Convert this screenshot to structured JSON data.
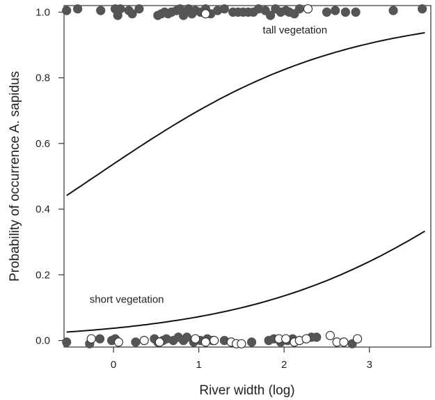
{
  "chart_data": {
    "type": "scatter",
    "xlabel": "River width (log)",
    "ylabel": "Probability of occurrence A. sapidus",
    "xlim": [
      -0.58,
      3.72
    ],
    "ylim": [
      -0.02,
      1.02
    ],
    "x_ticks": [
      0,
      1,
      2,
      3
    ],
    "y_ticks": [
      0.0,
      0.2,
      0.4,
      0.6,
      0.8,
      1.0
    ],
    "x_tick_labels": [
      "0",
      "1",
      "2",
      "3"
    ],
    "y_tick_labels": [
      "0.0",
      "0.2",
      "0.4",
      "0.6",
      "0.8",
      "1.0"
    ],
    "grid": false,
    "curves": [
      {
        "label": "tall vegetation",
        "intercept": 0.15,
        "slope": 0.7,
        "x_range": [
          -0.55,
          3.65
        ]
      },
      {
        "label": "short vegetation",
        "intercept": -3.25,
        "slope": 0.7,
        "x_range": [
          -0.55,
          3.65
        ]
      }
    ],
    "annotations": [
      {
        "text": "tall vegetation",
        "x": 1.75,
        "y": 0.935
      },
      {
        "text": "short vegetation",
        "x": -0.28,
        "y": 0.115
      }
    ],
    "points_filled_presence": [
      [
        -0.55,
        1.005
      ],
      [
        -0.42,
        1.01
      ],
      [
        -0.15,
        1.005
      ],
      [
        0.02,
        1.01
      ],
      [
        0.05,
        0.99
      ],
      [
        0.08,
        1.01
      ],
      [
        0.18,
        1.005
      ],
      [
        0.22,
        0.995
      ],
      [
        0.3,
        1.01
      ],
      [
        0.52,
        0.99
      ],
      [
        0.56,
        0.995
      ],
      [
        0.6,
        1.0
      ],
      [
        0.64,
        0.995
      ],
      [
        0.68,
        1.0
      ],
      [
        0.74,
        1.005
      ],
      [
        0.78,
        1.01
      ],
      [
        0.82,
        0.99
      ],
      [
        0.85,
        1.0
      ],
      [
        0.88,
        1.01
      ],
      [
        0.92,
        0.995
      ],
      [
        0.96,
        1.005
      ],
      [
        1.02,
        1.0
      ],
      [
        1.08,
        1.01
      ],
      [
        1.14,
        0.995
      ],
      [
        1.22,
        1.005
      ],
      [
        1.3,
        1.01
      ],
      [
        1.4,
        1.0
      ],
      [
        1.46,
        1.0
      ],
      [
        1.52,
        1.0
      ],
      [
        1.58,
        1.0
      ],
      [
        1.64,
        1.0
      ],
      [
        1.7,
        1.01
      ],
      [
        1.78,
        1.005
      ],
      [
        1.84,
        0.99
      ],
      [
        1.9,
        1.01
      ],
      [
        1.96,
        1.0
      ],
      [
        2.02,
        1.005
      ],
      [
        2.06,
        1.0
      ],
      [
        2.12,
        0.995
      ],
      [
        2.18,
        1.01
      ],
      [
        2.5,
        1.0
      ],
      [
        2.6,
        1.005
      ],
      [
        2.72,
        1.0
      ],
      [
        2.84,
        1.0
      ],
      [
        3.28,
        1.005
      ],
      [
        3.62,
        1.01
      ]
    ],
    "points_open_presence": [
      [
        1.08,
        0.995
      ],
      [
        2.28,
        1.01
      ]
    ],
    "points_filled_absence": [
      [
        -0.55,
        -0.005
      ],
      [
        -0.28,
        -0.01
      ],
      [
        -0.16,
        0.005
      ],
      [
        -0.02,
        0.0
      ],
      [
        0.02,
        0.005
      ],
      [
        0.26,
        -0.005
      ],
      [
        0.48,
        0.005
      ],
      [
        0.52,
        -0.005
      ],
      [
        0.58,
        0.0
      ],
      [
        0.62,
        0.005
      ],
      [
        0.7,
        0.0
      ],
      [
        0.76,
        0.01
      ],
      [
        0.82,
        0.0
      ],
      [
        0.86,
        0.01
      ],
      [
        0.94,
        -0.005
      ],
      [
        1.02,
        0.0
      ],
      [
        1.1,
        0.005
      ],
      [
        1.16,
        0.0
      ],
      [
        1.3,
        0.0
      ],
      [
        1.62,
        -0.005
      ],
      [
        1.82,
        0.0
      ],
      [
        1.88,
        0.005
      ],
      [
        1.96,
        -0.005
      ],
      [
        2.04,
        0.0
      ],
      [
        2.1,
        0.005
      ],
      [
        2.32,
        0.01
      ],
      [
        2.38,
        0.01
      ],
      [
        2.8,
        -0.01
      ]
    ],
    "points_open_absence": [
      [
        -0.26,
        0.005
      ],
      [
        0.06,
        -0.005
      ],
      [
        0.36,
        0.0
      ],
      [
        0.54,
        -0.005
      ],
      [
        0.96,
        0.005
      ],
      [
        1.08,
        -0.005
      ],
      [
        1.18,
        0.0
      ],
      [
        1.38,
        -0.005
      ],
      [
        1.44,
        -0.01
      ],
      [
        1.5,
        -0.01
      ],
      [
        1.94,
        0.005
      ],
      [
        2.02,
        0.005
      ],
      [
        2.12,
        -0.005
      ],
      [
        2.18,
        0.0
      ],
      [
        2.26,
        0.005
      ],
      [
        2.54,
        0.015
      ],
      [
        2.62,
        -0.005
      ],
      [
        2.7,
        -0.005
      ],
      [
        2.86,
        0.005
      ]
    ]
  }
}
